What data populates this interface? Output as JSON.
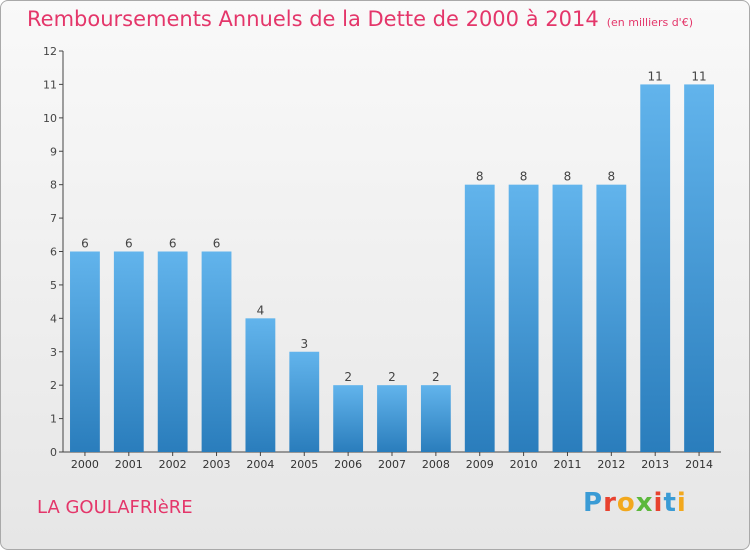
{
  "title": "Remboursements Annuels de la Dette de 2000 à 2014",
  "unit_label": "(en milliers d'€)",
  "commune": "LA GOULAFRIèRE",
  "logo": {
    "text": "Proxiti",
    "colors": [
      "#3a9bd5",
      "#e8422f",
      "#f2a81d",
      "#5cb83c",
      "#e8422f",
      "#3a9bd5",
      "#f2a81d"
    ]
  },
  "colors": {
    "bar_light": "#62b4ec",
    "bar_dark": "#2a7dbc",
    "title": "#e4366a"
  },
  "chart_data": {
    "type": "bar",
    "categories": [
      "2000",
      "2001",
      "2002",
      "2003",
      "2004",
      "2005",
      "2006",
      "2007",
      "2008",
      "2009",
      "2010",
      "2011",
      "2012",
      "2013",
      "2014"
    ],
    "values": [
      6,
      6,
      6,
      6,
      4,
      3,
      2,
      2,
      2,
      8,
      8,
      8,
      8,
      11,
      11
    ],
    "data_labels": [
      "6",
      "6",
      "6",
      "6",
      "4",
      "3",
      "2",
      "2",
      "2",
      "8",
      "8",
      "8",
      "8",
      "11",
      "11"
    ],
    "y_ticks": [
      0,
      1,
      2,
      3,
      4,
      5,
      6,
      7,
      8,
      9,
      10,
      11,
      12
    ],
    "ylim": [
      0,
      12
    ],
    "grid": false
  }
}
